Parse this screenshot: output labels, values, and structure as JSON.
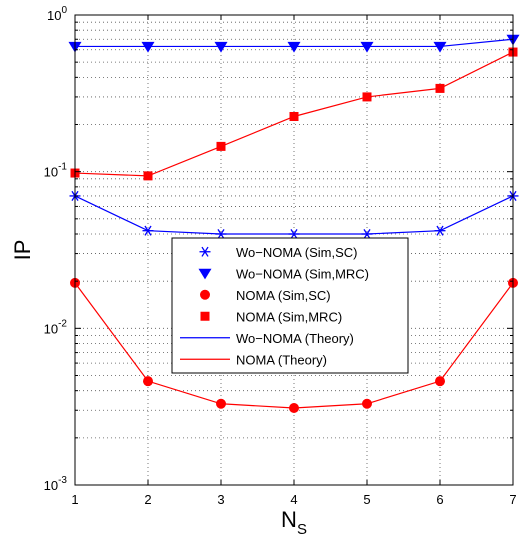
{
  "chart_data": {
    "type": "line",
    "xlabel_main": "N",
    "xlabel_sub": "S",
    "ylabel": "IP",
    "yscale": "log",
    "xlim": [
      1,
      7
    ],
    "ylim": [
      0.001,
      1
    ],
    "grid": "dotted",
    "x_ticks": [
      "1",
      "2",
      "3",
      "4",
      "5",
      "6",
      "7"
    ],
    "y_ticks": [
      {
        "value": 0.001,
        "base": "10",
        "exp": "-3"
      },
      {
        "value": 0.01,
        "base": "10",
        "exp": "-2"
      },
      {
        "value": 0.1,
        "base": "10",
        "exp": "-1"
      },
      {
        "value": 1,
        "base": "10",
        "exp": "0"
      }
    ],
    "legend_position": "center",
    "x": [
      1,
      2,
      3,
      4,
      5,
      6,
      7
    ],
    "series": [
      {
        "name": "Wo−NOMA (Sim,SC)",
        "color": "#0000ff",
        "marker": "asterisk",
        "line": false,
        "values": [
          0.07,
          0.042,
          0.04,
          0.04,
          0.04,
          0.042,
          0.07
        ]
      },
      {
        "name": "Wo−NOMA (Sim,MRC)",
        "color": "#0000ff",
        "marker": "triangle-down",
        "line": false,
        "values": [
          0.63,
          0.63,
          0.63,
          0.63,
          0.63,
          0.63,
          0.7
        ]
      },
      {
        "name": "NOMA (Sim,SC)",
        "color": "#ff0000",
        "marker": "circle",
        "line": false,
        "values": [
          0.0195,
          0.0046,
          0.0033,
          0.0031,
          0.0033,
          0.0046,
          0.0195
        ]
      },
      {
        "name": "NOMA (Sim,MRC)",
        "color": "#ff0000",
        "marker": "square",
        "line": false,
        "values": [
          0.098,
          0.094,
          0.145,
          0.225,
          0.3,
          0.34,
          0.58
        ]
      },
      {
        "name": "Wo−NOMA (Theory)",
        "color": "#0000ff",
        "marker": "none",
        "line": true,
        "lines": [
          [
            0.07,
            0.042,
            0.04,
            0.04,
            0.04,
            0.042,
            0.07
          ],
          [
            0.63,
            0.63,
            0.63,
            0.63,
            0.63,
            0.63,
            0.7
          ]
        ]
      },
      {
        "name": "NOMA (Theory)",
        "color": "#ff0000",
        "marker": "none",
        "line": true,
        "lines": [
          [
            0.0195,
            0.0046,
            0.0033,
            0.0031,
            0.0033,
            0.0046,
            0.0195
          ],
          [
            0.098,
            0.094,
            0.145,
            0.225,
            0.3,
            0.34,
            0.58
          ]
        ]
      }
    ]
  }
}
